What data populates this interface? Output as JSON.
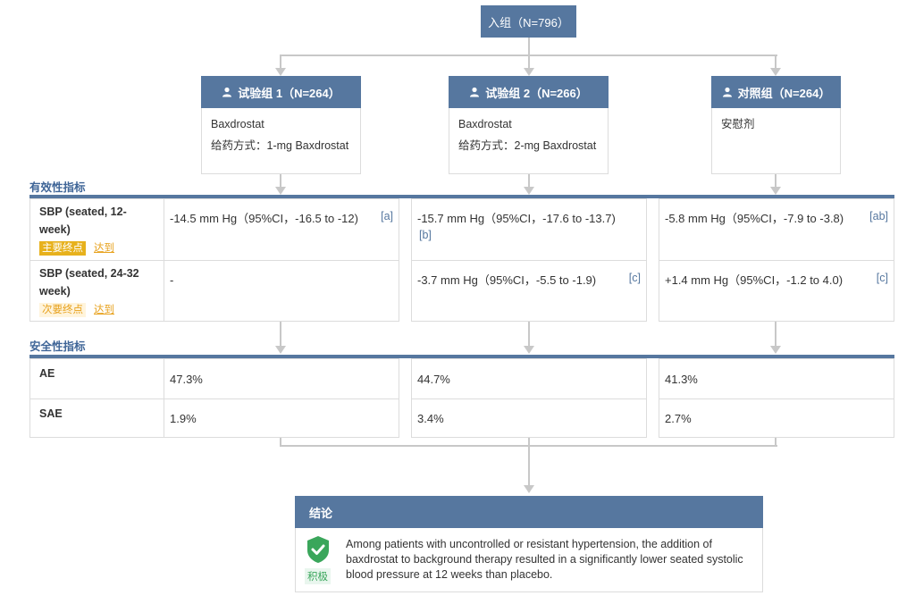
{
  "root": {
    "label": "入组（N=796）"
  },
  "arms": [
    {
      "title": "试验组 1（N=264）",
      "drug": "Baxdrostat",
      "dosing": "给药方式：1-mg Baxdrostat"
    },
    {
      "title": "试验组 2（N=266）",
      "drug": "Baxdrostat",
      "dosing": "给药方式：2-mg Baxdrostat"
    },
    {
      "title": "对照组（N=264）",
      "drug": "安慰剂",
      "dosing": ""
    }
  ],
  "efficacy": {
    "title": "有效性指标",
    "rows": [
      {
        "label": "SBP (seated, 12-week)",
        "tag": "主要终点",
        "status": "达到",
        "values": [
          "-14.5 mm Hg（95%CI，-16.5 to -12)",
          "-15.7 mm Hg（95%CI，-17.6 to -13.7)",
          "-5.8 mm Hg（95%CI，-7.9 to -3.8)"
        ],
        "refs": [
          "[a]",
          "[b]",
          "[ab]"
        ]
      },
      {
        "label": "SBP (seated, 24-32 week)",
        "tag": "次要终点",
        "status": "达到",
        "values": [
          "-",
          "-3.7 mm Hg（95%CI，-5.5 to -1.9)",
          "+1.4 mm Hg（95%CI，-1.2 to 4.0)"
        ],
        "refs": [
          "",
          "[c]",
          "[c]"
        ]
      }
    ]
  },
  "safety": {
    "title": "安全性指标",
    "rows": [
      {
        "label": "AE",
        "values": [
          "47.3%",
          "44.7%",
          "41.3%"
        ]
      },
      {
        "label": "SAE",
        "values": [
          "1.9%",
          "3.4%",
          "2.7%"
        ]
      }
    ]
  },
  "conclusion": {
    "title": "结论",
    "badge": "积极",
    "icon": "check-shield-icon",
    "text": "Among patients with uncontrolled or resistant hypertension, the addition of baxdrostat to background therapy resulted in a significantly lower seated systolic blood pressure at 12 weeks than placebo."
  },
  "colors": {
    "header": "#56779f",
    "primary_tag": "#e7b11c",
    "positive": "#3aa65b",
    "connector": "#c8c8c8"
  }
}
